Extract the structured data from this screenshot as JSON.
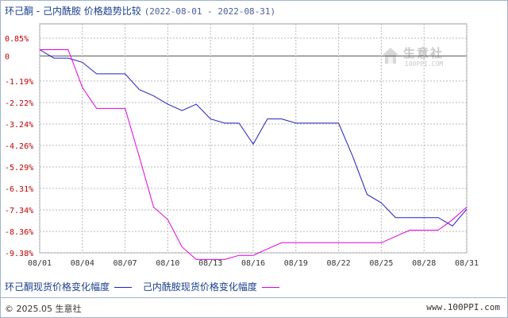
{
  "header": {
    "title": "环己酮 - 己内酰胺 价格趋势比较",
    "date_range": "(2022-08-01 - 2022-08-31)"
  },
  "watermark": {
    "cn": "生意社",
    "en": "100PPI.COM"
  },
  "footer": {
    "copyright": "© 2025.05 生意社",
    "site": "www.100PPI.com"
  },
  "colors": {
    "series1": "#2020c0",
    "series2": "#e000e0",
    "grid": "#b8b8b8",
    "axis": "#333333",
    "text": "#1a3f8f"
  },
  "chart_data": {
    "type": "line",
    "y_ticks": [
      "0.85%",
      "0",
      "-1.19%",
      "-2.22%",
      "-3.24%",
      "-4.26%",
      "-5.29%",
      "-6.31%",
      "-7.34%",
      "-8.36%",
      "-9.38%"
    ],
    "y_tick_values": [
      0.85,
      0,
      -1.19,
      -2.22,
      -3.24,
      -4.26,
      -5.29,
      -6.31,
      -7.34,
      -8.36,
      -9.38
    ],
    "ylim": [
      -9.38,
      0.85
    ],
    "x_ticks": [
      "08/01",
      "08/04",
      "08/07",
      "08/10",
      "08/13",
      "08/16",
      "08/19",
      "08/22",
      "08/25",
      "08/28",
      "08/31"
    ],
    "x_tick_days": [
      1,
      4,
      7,
      10,
      13,
      16,
      19,
      22,
      25,
      28,
      31
    ],
    "xlim": [
      1,
      31
    ],
    "grid": true,
    "legend_position": "bottom",
    "series": [
      {
        "name": "环己酮现货价格变化幅度",
        "color": "#2020c0",
        "x": [
          1,
          2,
          3,
          4,
          5,
          6,
          7,
          8,
          9,
          10,
          11,
          12,
          13,
          14,
          15,
          16,
          17,
          18,
          19,
          20,
          21,
          22,
          23,
          24,
          25,
          26,
          27,
          28,
          29,
          30,
          31
        ],
        "y": [
          0.3,
          -0.1,
          -0.1,
          -0.3,
          -0.85,
          -0.85,
          -0.85,
          -1.6,
          -1.9,
          -2.3,
          -2.6,
          -2.3,
          -3.0,
          -3.2,
          -3.2,
          -4.2,
          -3.0,
          -3.0,
          -3.2,
          -3.2,
          -3.2,
          -3.2,
          -4.8,
          -6.6,
          -7.0,
          -7.7,
          -7.7,
          -7.7,
          -7.7,
          -8.1,
          -7.3
        ]
      },
      {
        "name": "己内酰胺现货价格变化幅度",
        "color": "#e000e0",
        "x": [
          1,
          2,
          3,
          4,
          5,
          6,
          7,
          8,
          9,
          10,
          11,
          12,
          13,
          14,
          15,
          16,
          17,
          18,
          19,
          20,
          21,
          22,
          23,
          24,
          25,
          26,
          27,
          28,
          29,
          30,
          31
        ],
        "y": [
          0.3,
          0.3,
          0.3,
          -1.5,
          -2.5,
          -2.5,
          -2.5,
          -4.8,
          -7.2,
          -7.8,
          -9.1,
          -9.7,
          -9.7,
          -9.7,
          -9.5,
          -9.5,
          -9.2,
          -8.9,
          -8.9,
          -8.9,
          -8.9,
          -8.9,
          -8.9,
          -8.9,
          -8.9,
          -8.6,
          -8.3,
          -8.3,
          -8.3,
          -7.8,
          -7.2
        ]
      }
    ]
  }
}
